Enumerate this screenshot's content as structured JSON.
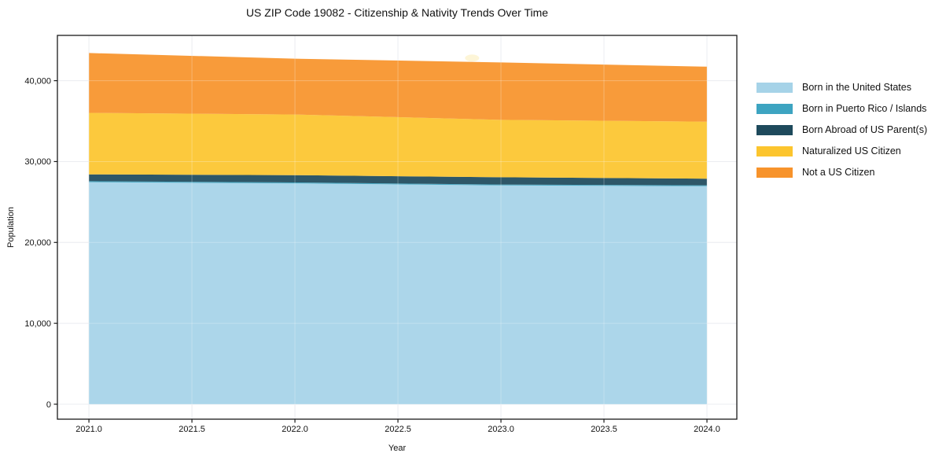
{
  "chart_data": {
    "type": "area",
    "stacked": true,
    "title": "US ZIP Code 19082 - Citizenship & Nativity Trends Over Time",
    "xlabel": "Year",
    "ylabel": "Population",
    "x": [
      2021,
      2022,
      2023,
      2024
    ],
    "series": [
      {
        "name": "Born in the United States",
        "color": "#a6d3e8",
        "values": [
          27450,
          27300,
          27050,
          26950
        ]
      },
      {
        "name": "Born in Puerto Rico / Islands",
        "color": "#3da4c1",
        "values": [
          120,
          120,
          110,
          110
        ]
      },
      {
        "name": "Born Abroad of US Parent(s)",
        "color": "#1e4a5c",
        "values": [
          850,
          900,
          900,
          820
        ]
      },
      {
        "name": "Naturalized US Citizen",
        "color": "#fcc52e",
        "values": [
          7600,
          7500,
          7100,
          7050
        ]
      },
      {
        "name": "Not a US Citizen",
        "color": "#f7932b",
        "values": [
          7400,
          6900,
          7100,
          6800
        ]
      }
    ],
    "xlim": [
      2020.847,
      2024.145
    ],
    "ylim": [
      -1850,
      45600
    ],
    "xticks": {
      "values": [
        2021.0,
        2021.5,
        2022.0,
        2022.5,
        2023.0,
        2023.5,
        2024.0
      ],
      "labels": [
        "2021.0",
        "2021.5",
        "2022.0",
        "2022.5",
        "2023.0",
        "2023.5",
        "2024.0"
      ]
    },
    "yticks": {
      "values": [
        0,
        10000,
        20000,
        30000,
        40000
      ],
      "labels": [
        "0",
        "10,000",
        "20,000",
        "30,000",
        "40,000"
      ]
    },
    "grid": true,
    "legend_position": "right-outside",
    "colors": {
      "axis": "#1a1a1a",
      "grid_under": "#e4e7ec",
      "grid_over": "rgba(255,255,255,0.28)",
      "tick_text": "#111111",
      "background": "#ffffff"
    },
    "artifact": {
      "x": 2022.86,
      "y": 42800,
      "color": "rgba(253,243,208,0.85)"
    }
  }
}
